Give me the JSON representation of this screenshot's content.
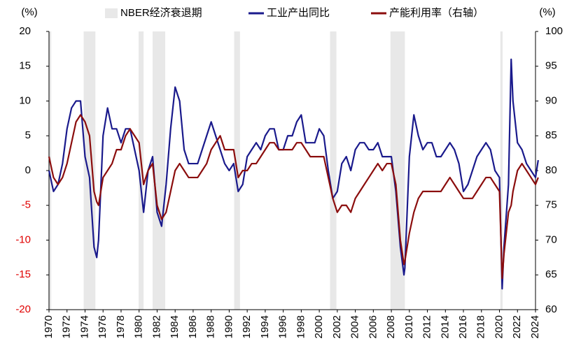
{
  "chart_data": {
    "type": "line",
    "ylabel": "(%)",
    "y2label": "(%)",
    "recession_name": "NBER经济衰退期",
    "recession_color": "#e8e8e8",
    "recessions": [
      [
        1969.95,
        1970.25
      ],
      [
        1973.85,
        1975.15
      ],
      [
        1979.95,
        1980.5
      ],
      [
        1981.5,
        1982.9
      ],
      [
        1990.55,
        1991.2
      ],
      [
        2001.2,
        2001.9
      ],
      [
        2007.9,
        2009.5
      ],
      [
        2020.1,
        2020.35
      ]
    ],
    "x": [
      1970.0,
      1970.5,
      1971.0,
      1971.5,
      1972.0,
      1972.5,
      1973.0,
      1973.5,
      1974.0,
      1974.5,
      1975.0,
      1975.3,
      1975.5,
      1976.0,
      1976.5,
      1977.0,
      1977.5,
      1978.0,
      1978.5,
      1979.0,
      1979.5,
      1980.0,
      1980.5,
      1981.0,
      1981.5,
      1982.0,
      1982.5,
      1983.0,
      1983.5,
      1984.0,
      1984.5,
      1985.0,
      1985.5,
      1986.0,
      1986.5,
      1987.0,
      1987.5,
      1988.0,
      1988.5,
      1989.0,
      1989.5,
      1990.0,
      1990.5,
      1991.0,
      1991.5,
      1992.0,
      1992.5,
      1993.0,
      1993.5,
      1994.0,
      1994.5,
      1995.0,
      1995.5,
      1996.0,
      1996.5,
      1997.0,
      1997.5,
      1998.0,
      1998.5,
      1999.0,
      1999.5,
      2000.0,
      2000.5,
      2001.0,
      2001.5,
      2002.0,
      2002.5,
      2003.0,
      2003.5,
      2004.0,
      2004.5,
      2005.0,
      2005.5,
      2006.0,
      2006.5,
      2007.0,
      2007.5,
      2008.0,
      2008.5,
      2009.0,
      2009.4,
      2009.5,
      2010.0,
      2010.5,
      2011.0,
      2011.5,
      2012.0,
      2012.5,
      2013.0,
      2013.5,
      2014.0,
      2014.5,
      2015.0,
      2015.5,
      2016.0,
      2016.5,
      2017.0,
      2017.5,
      2018.0,
      2018.5,
      2019.0,
      2019.5,
      2020.0,
      2020.3,
      2020.5,
      2021.0,
      2021.3,
      2021.5,
      2022.0,
      2022.5,
      2023.0,
      2023.5,
      2024.0,
      2024.3
    ],
    "series": [
      {
        "name": "工业产出同比",
        "color": "#1a1a8c",
        "axis": "y",
        "values": [
          0,
          -3,
          -2,
          1,
          6,
          9,
          10,
          10,
          2,
          -1,
          -11,
          -12.5,
          -10,
          5,
          9,
          6,
          6,
          4,
          6,
          6,
          3,
          0,
          -6,
          0,
          2,
          -6,
          -8,
          -2,
          6,
          12,
          10,
          3,
          1,
          1,
          1,
          3,
          5,
          7,
          5,
          3,
          1,
          0,
          1,
          -3,
          -2,
          2,
          3,
          4,
          3,
          5,
          6,
          6,
          3,
          3,
          5,
          5,
          7,
          8,
          4,
          4,
          4,
          6,
          5,
          0,
          -4,
          -3,
          1,
          2,
          0,
          3,
          4,
          4,
          3,
          3,
          4,
          2,
          2,
          2,
          -3,
          -11,
          -15,
          -14,
          2,
          8,
          5,
          3,
          4,
          4,
          2,
          2,
          3,
          4,
          3,
          1,
          -3,
          -2,
          0,
          2,
          3,
          4,
          3,
          0,
          -1,
          -17,
          -11,
          -2,
          16,
          10,
          4,
          3,
          1,
          0,
          -1,
          1.5
        ]
      },
      {
        "name": "产能利用率（右轴）",
        "color": "#8b0d0d",
        "axis": "y2",
        "values": [
          82,
          79,
          78,
          79,
          81,
          84,
          87,
          88,
          87,
          85,
          77,
          75.5,
          75,
          79,
          80,
          81,
          83,
          83,
          85,
          86,
          85,
          84,
          78,
          80,
          81,
          75,
          73,
          74,
          77,
          80,
          81,
          80,
          79,
          79,
          79,
          80,
          81,
          83,
          84,
          85,
          83,
          83,
          83,
          79,
          80,
          80,
          81,
          81,
          82,
          83,
          84,
          84,
          83,
          83,
          83,
          83,
          84,
          84,
          83,
          82,
          82,
          82,
          82,
          79,
          76,
          74,
          75,
          75,
          74,
          76,
          77,
          78,
          79,
          80,
          81,
          80,
          81,
          81,
          78,
          70,
          66.5,
          67,
          71,
          74,
          76,
          77,
          77,
          77,
          77,
          77,
          78,
          79,
          78,
          77,
          76,
          76,
          76,
          77,
          78,
          79,
          79,
          78,
          77,
          64.5,
          68,
          74,
          75,
          77,
          80,
          81,
          80,
          79,
          78,
          79
        ]
      }
    ],
    "xlim": [
      1970,
      2024
    ],
    "xticks": [
      1970,
      1972,
      1974,
      1976,
      1978,
      1980,
      1982,
      1984,
      1986,
      1988,
      1990,
      1992,
      1994,
      1996,
      1998,
      2000,
      2002,
      2004,
      2006,
      2008,
      2010,
      2012,
      2014,
      2016,
      2018,
      2020,
      2022,
      2024
    ],
    "ylim": [
      -20,
      20
    ],
    "yticks": [
      -20,
      -15,
      -10,
      -5,
      0,
      5,
      10,
      15,
      20
    ],
    "y2lim": [
      60,
      100
    ],
    "y2ticks": [
      60,
      65,
      70,
      75,
      80,
      85,
      90,
      95,
      100
    ],
    "negative_tick_color": "#e00000"
  }
}
